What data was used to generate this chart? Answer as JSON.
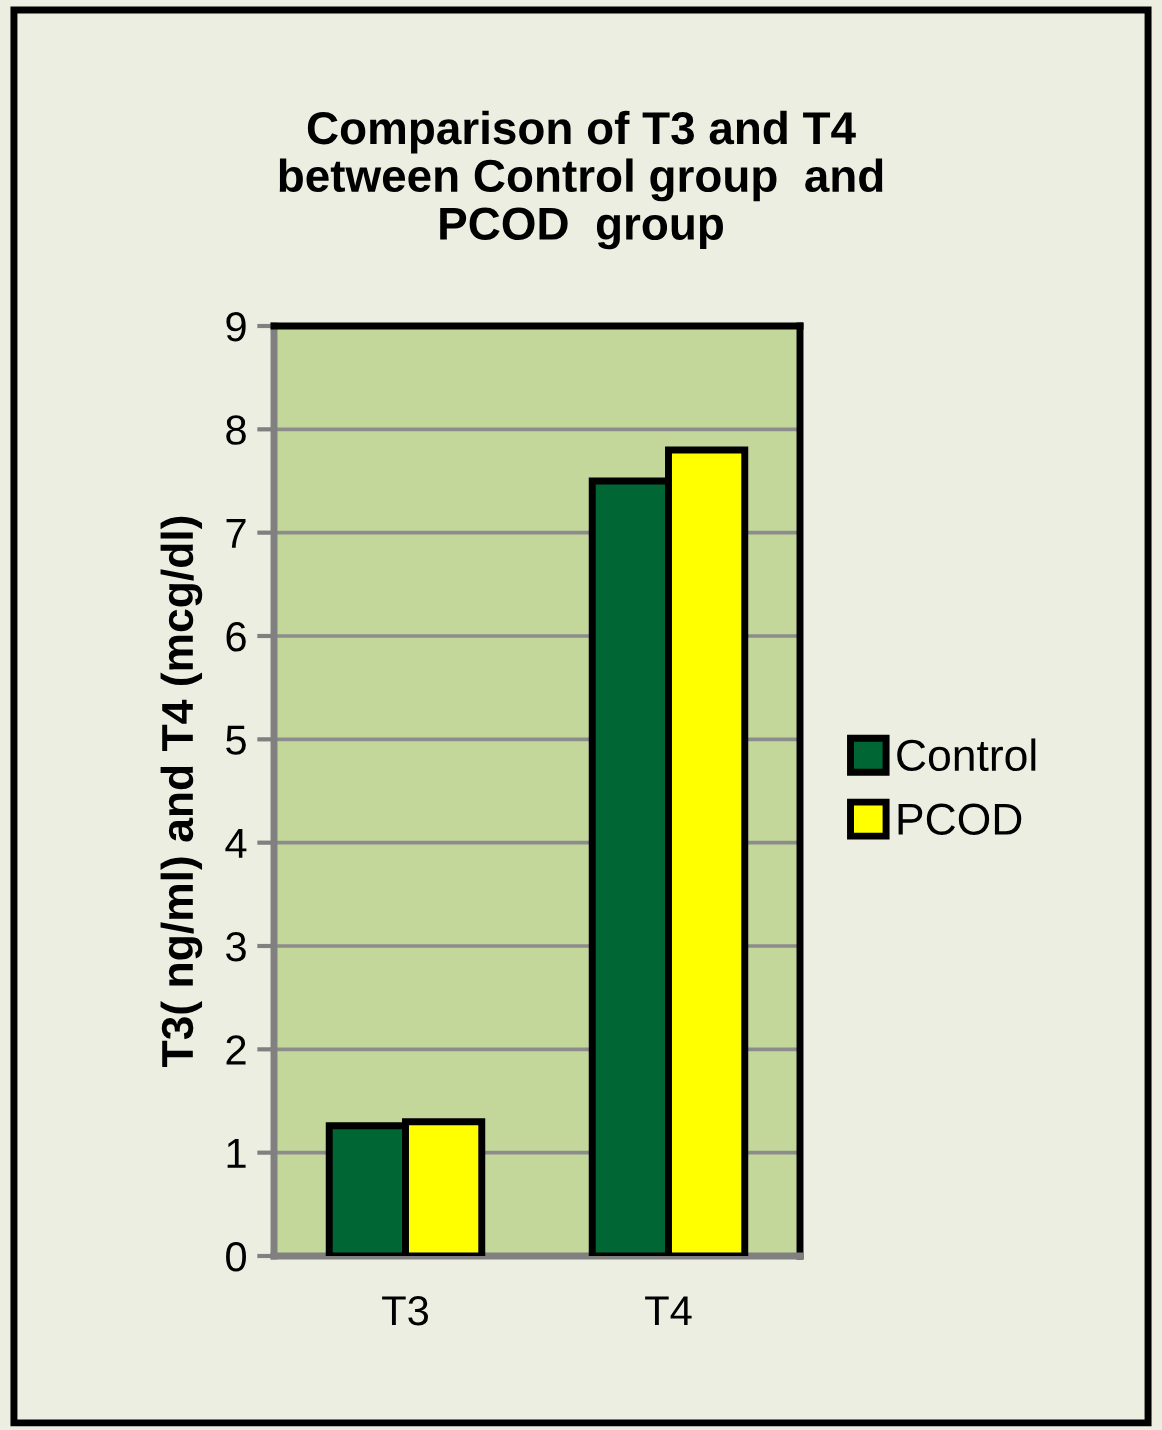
{
  "chart_data": {
    "type": "bar",
    "title": "Comparison of T3 and T4\nbetween Control group  and\nPCOD  group",
    "ylabel": "T3( ng/ml) and T4 (mcg/dl)",
    "categories": [
      "T3",
      "T4"
    ],
    "series": [
      {
        "name": "Control",
        "color": "#006633",
        "values": [
          1.26,
          7.5
        ]
      },
      {
        "name": "PCOD",
        "color": "#ffff00",
        "values": [
          1.3,
          7.8
        ]
      }
    ],
    "ylim": [
      0,
      9
    ],
    "yticks": [
      0,
      1,
      2,
      3,
      4,
      5,
      6,
      7,
      8,
      9
    ],
    "grid": "y",
    "legend": "right"
  }
}
